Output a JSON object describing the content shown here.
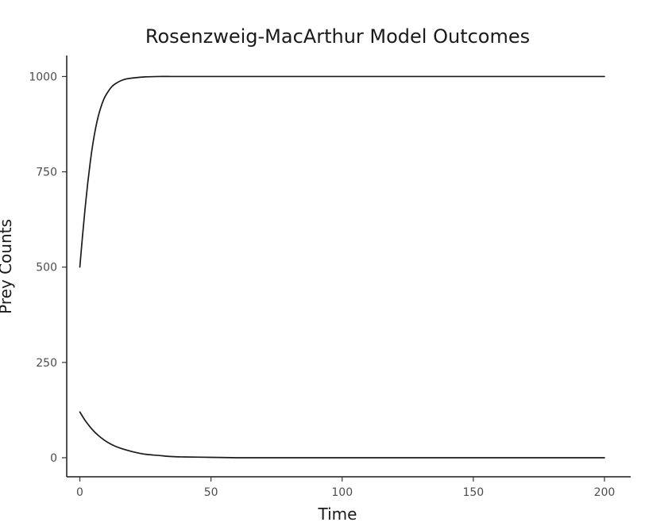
{
  "chart_data": {
    "type": "line",
    "title": "Rosenzweig-MacArthur Model Outcomes",
    "xlabel": "Time",
    "ylabel": "Prey Counts",
    "xlim": [
      -5,
      210
    ],
    "ylim": [
      -50,
      1055
    ],
    "x_ticks": [
      0,
      50,
      100,
      150,
      200
    ],
    "y_ticks": [
      0,
      250,
      500,
      750,
      1000
    ],
    "grid": false,
    "legend": "none",
    "line_color": "#1a1a1a",
    "series": [
      {
        "x": [
          0,
          1,
          2,
          3,
          4,
          5,
          6,
          7,
          8,
          9,
          10,
          12,
          14,
          16,
          18,
          20,
          25,
          30,
          35,
          40,
          50,
          60,
          70,
          80,
          100,
          120,
          150,
          200
        ],
        "values": [
          500,
          580,
          654,
          720,
          777,
          825,
          864,
          895,
          919,
          938,
          952,
          972,
          983,
          990,
          994,
          996,
          999,
          1000,
          1000,
          1000,
          1000,
          1000,
          1000,
          1000,
          1000,
          1000,
          1000,
          1000
        ]
      },
      {
        "x": [
          0,
          2,
          4,
          6,
          8,
          10,
          12,
          15,
          20,
          25,
          30,
          35,
          40,
          50,
          60,
          70,
          80,
          100,
          120,
          150,
          200
        ],
        "values": [
          120,
          98,
          80,
          65,
          53,
          43,
          35,
          26,
          16,
          9,
          6,
          3,
          2,
          1,
          0,
          0,
          0,
          0,
          0,
          0,
          0
        ]
      }
    ]
  }
}
